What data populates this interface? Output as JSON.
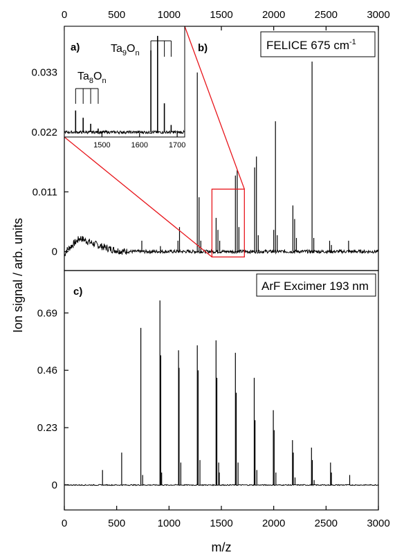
{
  "figure": {
    "ylabel": "Ion signal / arb. units",
    "xlabel": "m/z",
    "line_color": "#000000",
    "highlight_color": "#e8151b",
    "frame_color": "#000000"
  },
  "chart_data": [
    {
      "panel": "b)",
      "type": "line",
      "legend": "FELICE 675 cm",
      "legend_sup": "-1",
      "xlim": [
        0,
        3000
      ],
      "ylim": [
        -0.0035,
        0.0415
      ],
      "xticks": [
        0,
        500,
        1000,
        1500,
        2000,
        2500,
        3000
      ],
      "xtick_labels": [
        "0",
        "500",
        "1000",
        "1500",
        "2000",
        "2500",
        "3000"
      ],
      "xtick_position": "top",
      "yticks": [
        0,
        0.011,
        0.022,
        0.033
      ],
      "ytick_labels": [
        "0",
        "0.011",
        "0.022",
        "0.033"
      ],
      "baseline": 0,
      "baseline_noise": 0.0003,
      "hump": {
        "x_start": 10,
        "x_peak": 150,
        "x_end": 600,
        "y_peak": 0.0025
      },
      "peaks": [
        {
          "x": 1270,
          "y": 0.033
        },
        {
          "x": 1287,
          "y": 0.01
        },
        {
          "x": 1304,
          "y": 0.002
        },
        {
          "x": 1450,
          "y": 0.0062
        },
        {
          "x": 1467,
          "y": 0.004
        },
        {
          "x": 1484,
          "y": 0.002
        },
        {
          "x": 1634,
          "y": 0.014
        },
        {
          "x": 1651,
          "y": 0.015
        },
        {
          "x": 1668,
          "y": 0.0045
        },
        {
          "x": 1818,
          "y": 0.0155
        },
        {
          "x": 1835,
          "y": 0.0175
        },
        {
          "x": 1852,
          "y": 0.003
        },
        {
          "x": 2000,
          "y": 0.004
        },
        {
          "x": 2017,
          "y": 0.024
        },
        {
          "x": 2034,
          "y": 0.003
        },
        {
          "x": 2183,
          "y": 0.0085
        },
        {
          "x": 2200,
          "y": 0.006
        },
        {
          "x": 2217,
          "y": 0.0025
        },
        {
          "x": 2366,
          "y": 0.035
        },
        {
          "x": 2383,
          "y": 0.0025
        },
        {
          "x": 2534,
          "y": 0.002
        },
        {
          "x": 2551,
          "y": 0.0012
        },
        {
          "x": 2715,
          "y": 0.002
        },
        {
          "x": 1100,
          "y": 0.0045
        },
        {
          "x": 1085,
          "y": 0.002
        },
        {
          "x": 918,
          "y": 0.001
        },
        {
          "x": 740,
          "y": 0.002
        }
      ],
      "highlight_box": {
        "x": [
          1410,
          1720
        ],
        "y": [
          -0.001,
          0.0115
        ]
      }
    },
    {
      "panel": "a)",
      "type": "line",
      "inset": true,
      "xlim": [
        1400,
        1720
      ],
      "ylim": [
        -0.002,
        0.044
      ],
      "xticks": [
        1500,
        1600,
        1700
      ],
      "xtick_labels": [
        "1500",
        "1600",
        "1700"
      ],
      "baseline": 0,
      "peaks": [
        {
          "x": 1430,
          "y": 0.009
        },
        {
          "x": 1450,
          "y": 0.006
        },
        {
          "x": 1470,
          "y": 0.0035
        },
        {
          "x": 1490,
          "y": 0.0015
        },
        {
          "x": 1630,
          "y": 0.034
        },
        {
          "x": 1648,
          "y": 0.04
        },
        {
          "x": 1666,
          "y": 0.012
        },
        {
          "x": 1684,
          "y": 0.003
        }
      ],
      "annotations": [
        {
          "base": "Ta",
          "sub1": "8",
          "mid": "O",
          "sub2": "n",
          "comb_x": [
            1430,
            1450,
            1470,
            1490
          ]
        },
        {
          "base": "Ta",
          "sub1": "9",
          "mid": "O",
          "sub2": "n",
          "comb_x": [
            1630,
            1648,
            1666,
            1684
          ]
        }
      ]
    },
    {
      "panel": "c)",
      "type": "line",
      "legend": "ArF Excimer 193 nm",
      "xlim": [
        0,
        3000
      ],
      "ylim": [
        -0.1,
        0.86
      ],
      "xticks": [
        0,
        500,
        1000,
        1500,
        2000,
        2500,
        3000
      ],
      "xtick_labels": [
        "0",
        "500",
        "1000",
        "1500",
        "2000",
        "2500",
        "3000"
      ],
      "yticks": [
        0,
        0.23,
        0.46,
        0.69
      ],
      "ytick_labels": [
        "0",
        "0.23",
        "0.46",
        "0.69"
      ],
      "baseline": 0,
      "peaks": [
        {
          "x": 365,
          "y": 0.06
        },
        {
          "x": 548,
          "y": 0.13
        },
        {
          "x": 731,
          "y": 0.63
        },
        {
          "x": 748,
          "y": 0.04
        },
        {
          "x": 913,
          "y": 0.74
        },
        {
          "x": 921,
          "y": 0.52
        },
        {
          "x": 930,
          "y": 0.05
        },
        {
          "x": 1091,
          "y": 0.54
        },
        {
          "x": 1096,
          "y": 0.47
        },
        {
          "x": 1113,
          "y": 0.09
        },
        {
          "x": 1270,
          "y": 0.56
        },
        {
          "x": 1278,
          "y": 0.46
        },
        {
          "x": 1295,
          "y": 0.1
        },
        {
          "x": 1449,
          "y": 0.58
        },
        {
          "x": 1457,
          "y": 0.43
        },
        {
          "x": 1474,
          "y": 0.09
        },
        {
          "x": 1480,
          "y": 0.05
        },
        {
          "x": 1634,
          "y": 0.53
        },
        {
          "x": 1642,
          "y": 0.37
        },
        {
          "x": 1659,
          "y": 0.09
        },
        {
          "x": 1814,
          "y": 0.43
        },
        {
          "x": 1822,
          "y": 0.26
        },
        {
          "x": 1839,
          "y": 0.06
        },
        {
          "x": 1996,
          "y": 0.3
        },
        {
          "x": 2004,
          "y": 0.22
        },
        {
          "x": 2021,
          "y": 0.05
        },
        {
          "x": 2179,
          "y": 0.18
        },
        {
          "x": 2187,
          "y": 0.13
        },
        {
          "x": 2204,
          "y": 0.03
        },
        {
          "x": 2361,
          "y": 0.15
        },
        {
          "x": 2369,
          "y": 0.1
        },
        {
          "x": 2386,
          "y": 0.02
        },
        {
          "x": 2543,
          "y": 0.09
        },
        {
          "x": 2551,
          "y": 0.05
        },
        {
          "x": 2726,
          "y": 0.04
        }
      ]
    }
  ]
}
